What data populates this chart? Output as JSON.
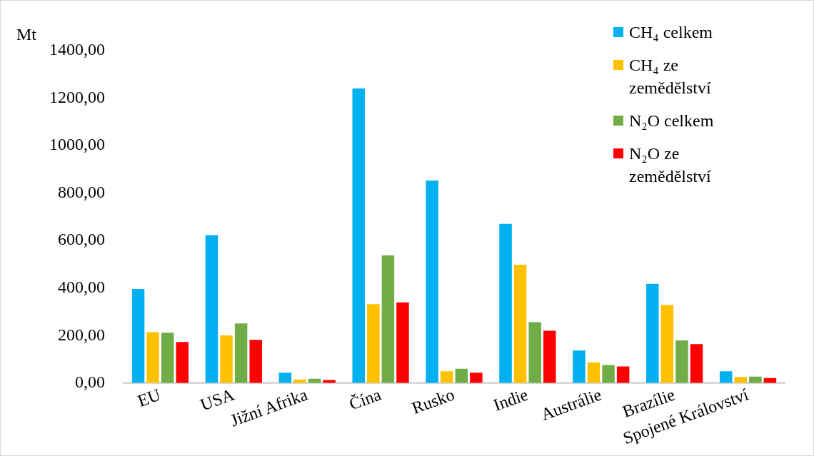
{
  "chart_data": {
    "type": "bar",
    "ylabel": "Mt",
    "categories": [
      "EU",
      "USA",
      "Jižní Afrika",
      "Čína",
      "Rusko",
      "Indie",
      "Austrálie",
      "Brazílie",
      "Spojené Království"
    ],
    "series": [
      {
        "name": "CH₄ celkem",
        "color": "#00b0f0",
        "values": [
          396,
          623,
          44,
          1241,
          853,
          670,
          137,
          418,
          50
        ]
      },
      {
        "name": "CH₄ ze zemědělství",
        "color": "#ffc000",
        "values": [
          214,
          201,
          15,
          332,
          50,
          498,
          87,
          329,
          26
        ]
      },
      {
        "name": "N₂O celkem",
        "color": "#70ad47",
        "values": [
          212,
          251,
          18,
          538,
          60,
          256,
          76,
          180,
          27
        ]
      },
      {
        "name": "N₂O ze zemědělství",
        "color": "#ff0000",
        "values": [
          173,
          182,
          13,
          340,
          44,
          220,
          70,
          164,
          21
        ]
      }
    ],
    "ylim": [
      0,
      1400
    ],
    "yticks": [
      {
        "value": 0,
        "label": "0,00"
      },
      {
        "value": 200,
        "label": "200,00"
      },
      {
        "value": 400,
        "label": "400,00"
      },
      {
        "value": 600,
        "label": "600,00"
      },
      {
        "value": 800,
        "label": "800,00"
      },
      {
        "value": 1000,
        "label": "1000,00"
      },
      {
        "value": 1200,
        "label": "1200,00"
      },
      {
        "value": 1400,
        "label": "1400,00"
      }
    ],
    "grid": false,
    "legend": "top right"
  }
}
